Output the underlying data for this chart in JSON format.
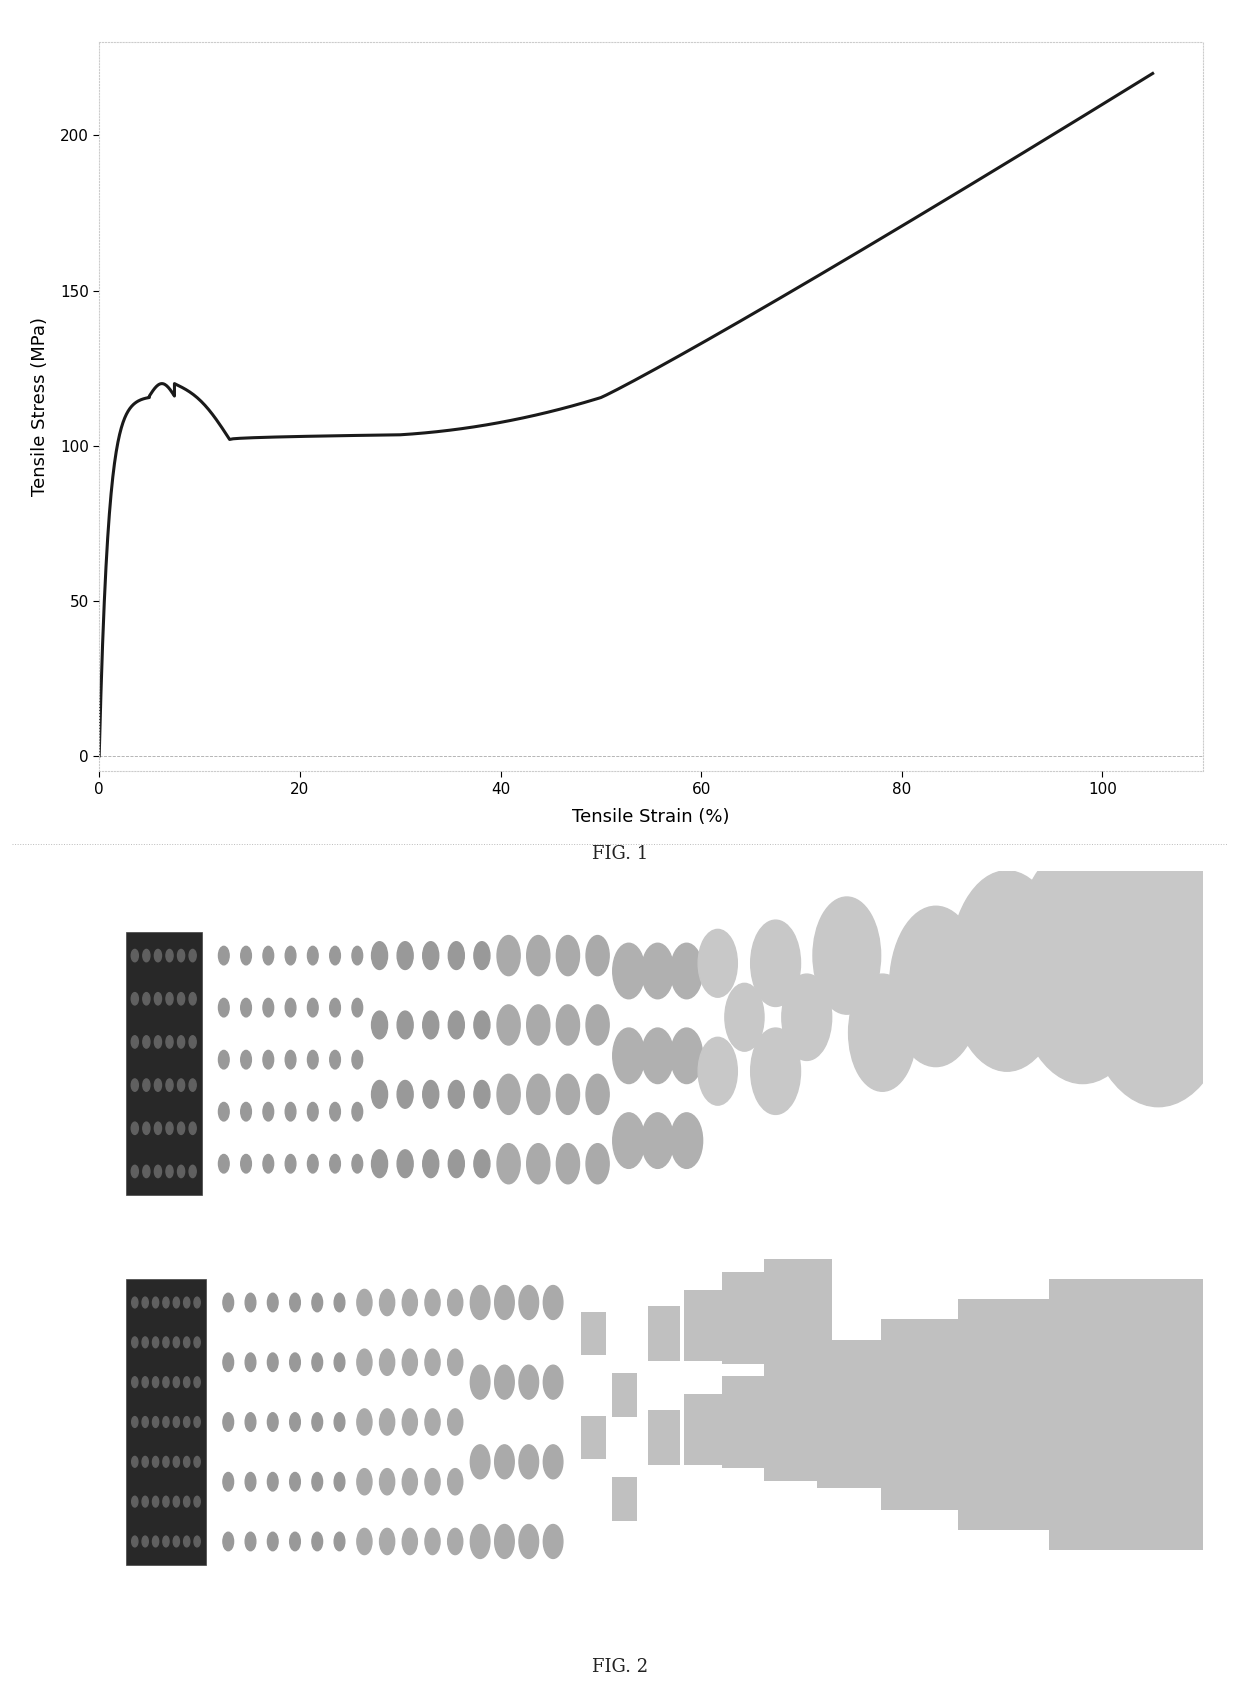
{
  "fig1": {
    "title": "FIG. 1",
    "xlabel": "Tensile Strain (%)",
    "ylabel": "Tensile Stress (MPa)",
    "xlim": [
      0,
      110
    ],
    "ylim": [
      -5,
      230
    ],
    "xticks": [
      0,
      20,
      40,
      60,
      80,
      100
    ],
    "yticks": [
      0,
      50,
      100,
      150,
      200
    ],
    "line_color": "#1a1a1a",
    "line_width": 2.2,
    "bg_color": "#ffffff"
  },
  "fig2": {
    "title": "FIG. 2",
    "bg_color": "#181818"
  },
  "page_bg": "#ffffff",
  "border_color": "#cccccc"
}
